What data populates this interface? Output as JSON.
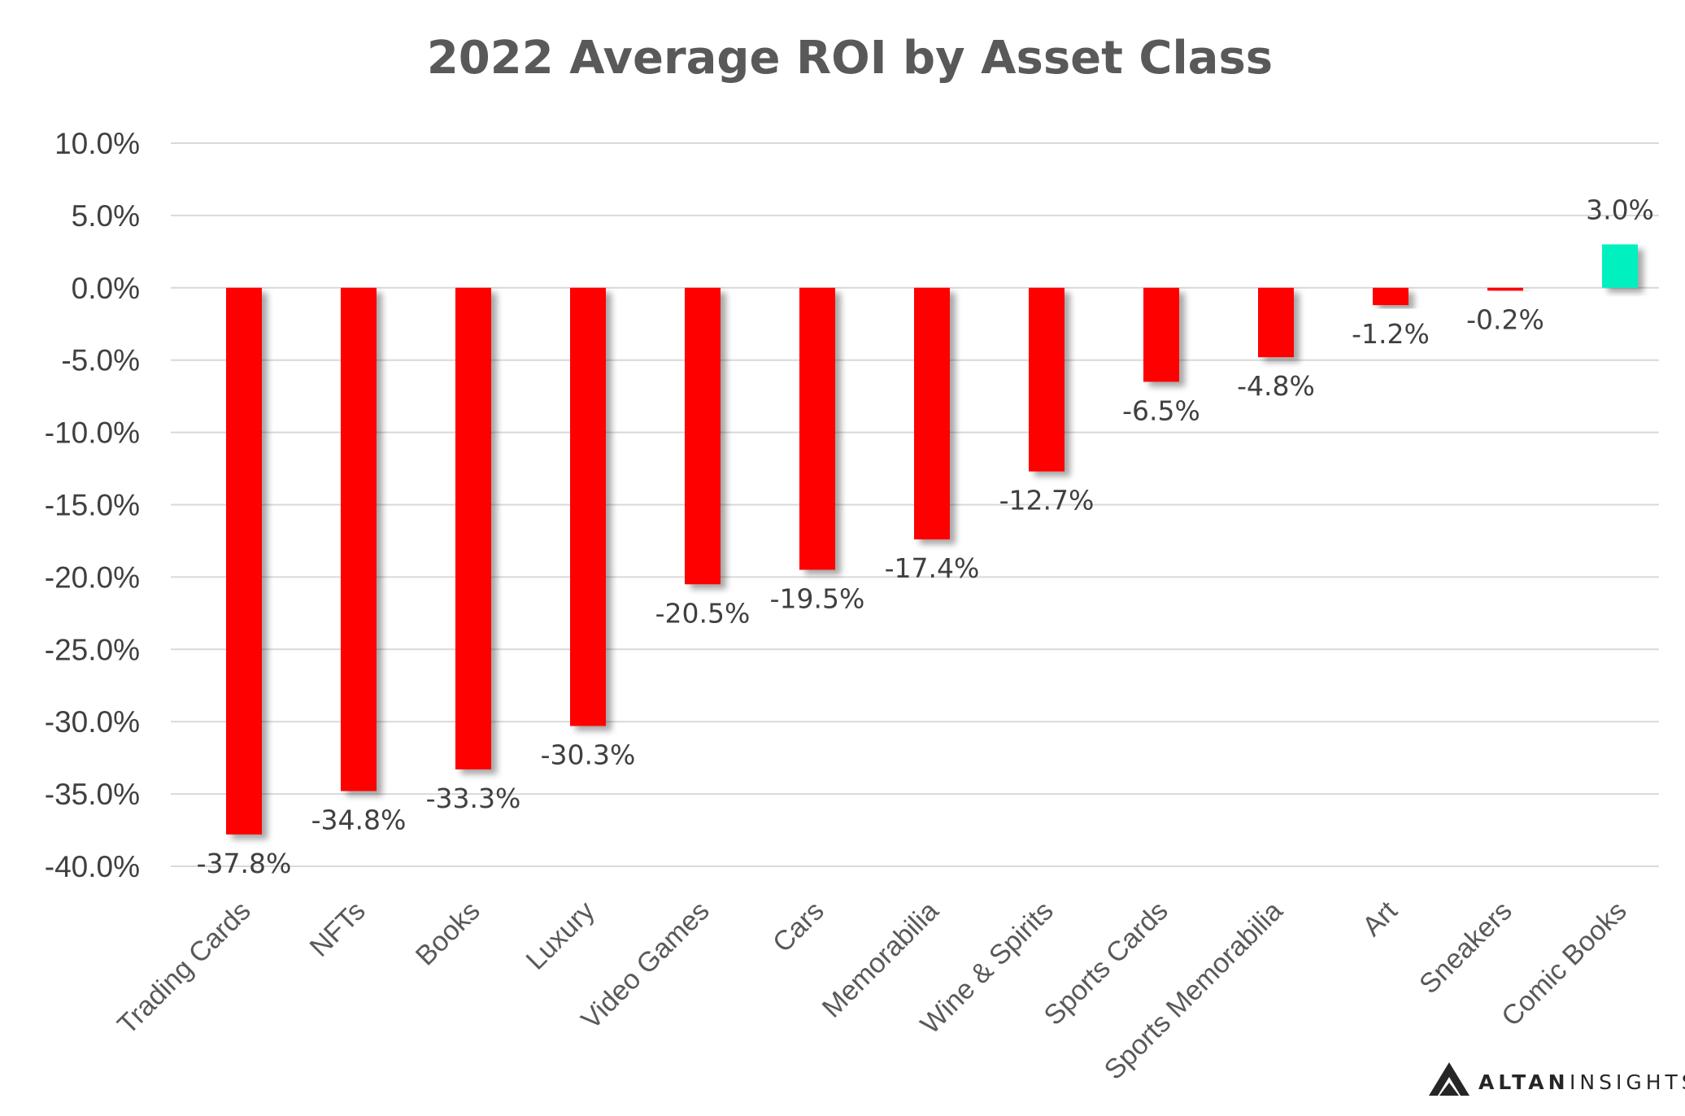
{
  "chart_data": {
    "type": "bar",
    "title": "2022 Average ROI by Asset Class",
    "xlabel": "",
    "ylabel": "",
    "categories": [
      "Trading Cards",
      "NFTs",
      "Books",
      "Luxury",
      "Video Games",
      "Cars",
      "Memorabilia",
      "Wine & Spirits",
      "Sports Cards",
      "Sports Memorabilia",
      "Art",
      "Sneakers",
      "Comic Books"
    ],
    "values": [
      -37.8,
      -34.8,
      -33.3,
      -30.3,
      -20.5,
      -19.5,
      -17.4,
      -12.7,
      -6.5,
      -4.8,
      -1.2,
      -0.2,
      3.0
    ],
    "data_labels": [
      "-37.8%",
      "-34.8%",
      "-33.3%",
      "-30.3%",
      "-20.5%",
      "-19.5%",
      "-17.4%",
      "-12.7%",
      "-6.5%",
      "-4.8%",
      "-1.2%",
      "-0.2%",
      "3.0%"
    ],
    "ylim": [
      -40,
      10
    ],
    "yticks": [
      10,
      5,
      0,
      -5,
      -10,
      -15,
      -20,
      -25,
      -30,
      -35,
      -40
    ],
    "ytick_labels": [
      "10.0%",
      "5.0%",
      "0.0%",
      "-5.0%",
      "-10.0%",
      "-15.0%",
      "-20.0%",
      "-25.0%",
      "-30.0%",
      "-35.0%",
      "-40.0%"
    ],
    "grid": true,
    "legend": "none",
    "colors": {
      "negative": "#ff0000",
      "positive": "#00f0c0",
      "grid": "#d9d9d9",
      "text": "#404040"
    }
  },
  "branding": {
    "name": "ALTAN",
    "sub": "INSIGHTS",
    "logo_icon": "triangle-logo-icon"
  }
}
